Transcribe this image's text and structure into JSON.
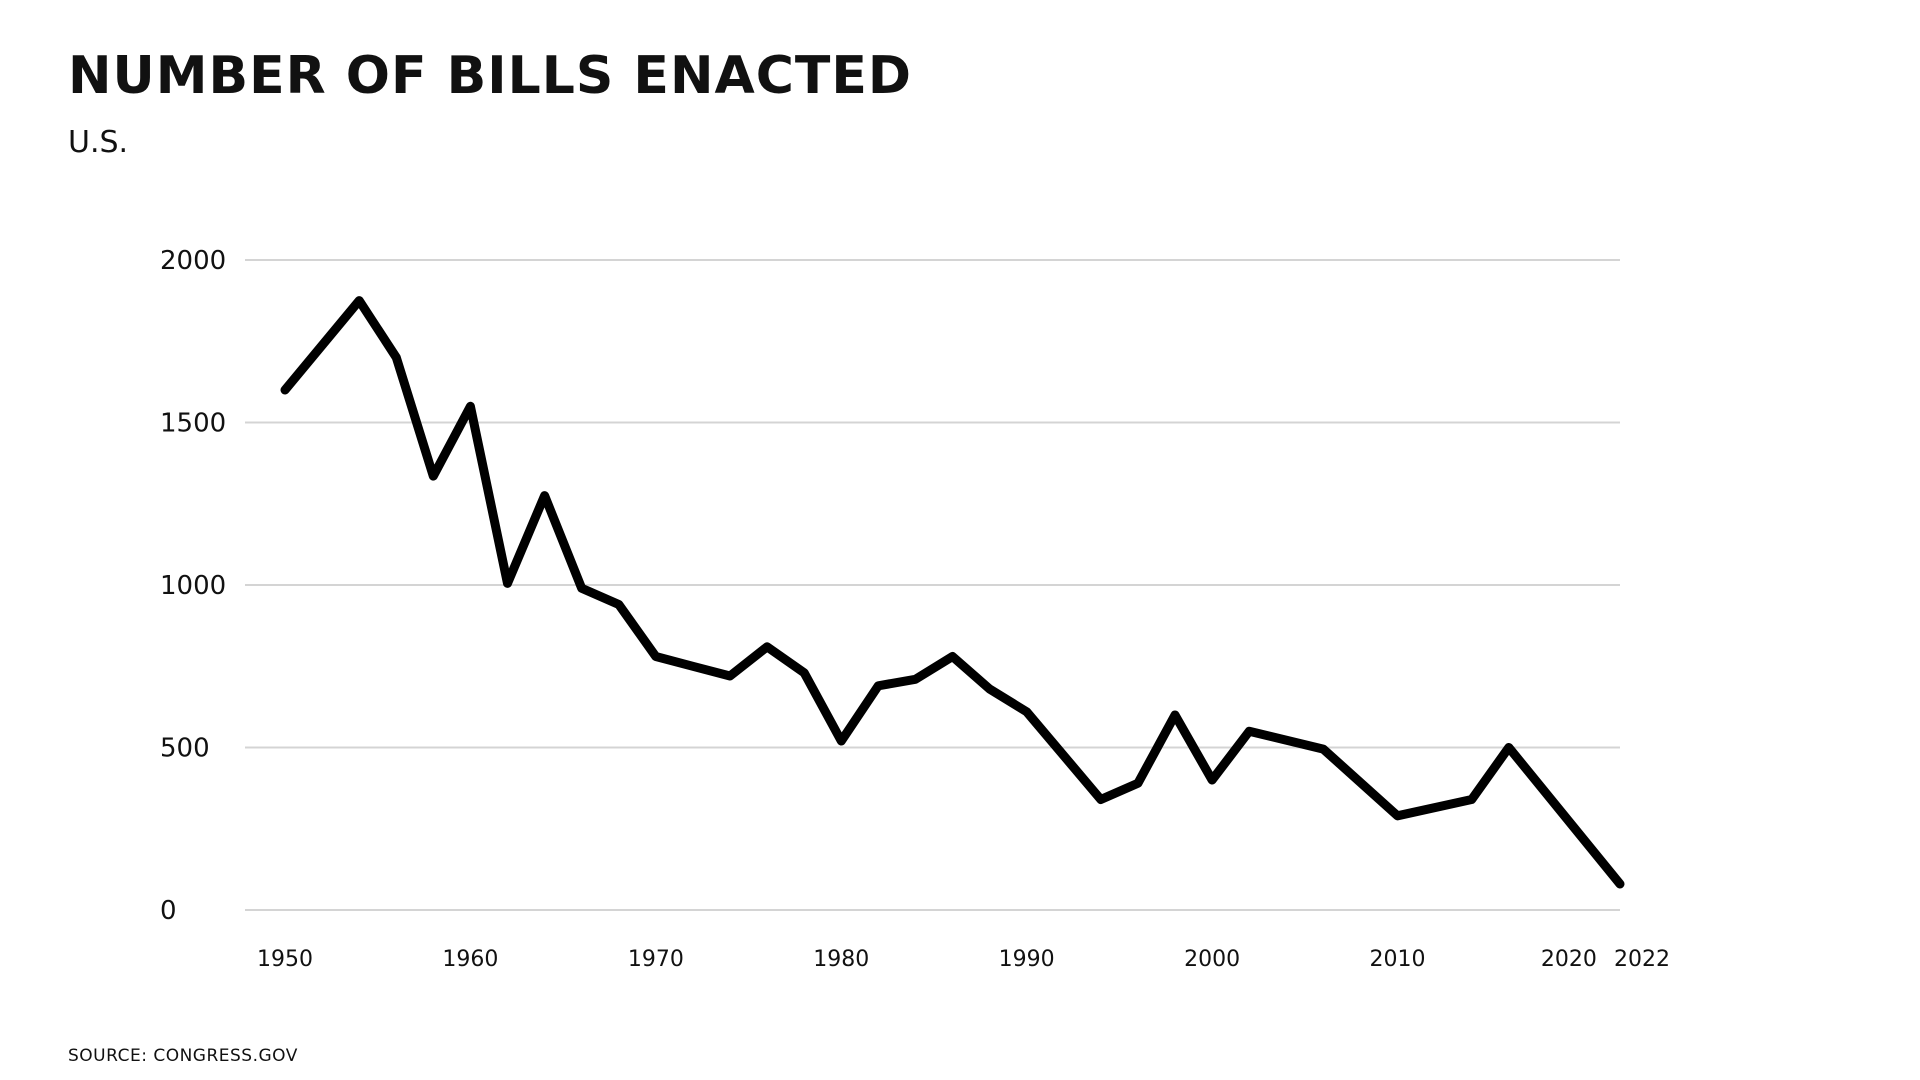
{
  "header": {
    "title": "Number of Bills Enacted",
    "subtitle": "U.S."
  },
  "footer": {
    "source": "Source: Congress.gov"
  },
  "colors": {
    "line": "#000000",
    "grid": "#d4d4d4",
    "text": "#111111",
    "background": "#ffffff"
  },
  "chart_data": {
    "type": "line",
    "title": "Number of Bills Enacted",
    "subtitle": "U.S.",
    "xlabel": "",
    "ylabel": "",
    "ylim": [
      0,
      2000
    ],
    "xlim": [
      1950,
      2022
    ],
    "grid": true,
    "legend": "none",
    "y_ticks": [
      0,
      500,
      1000,
      1500,
      2000
    ],
    "x_ticks": [
      1950,
      1960,
      1970,
      1980,
      1990,
      2000,
      2010,
      2020,
      2022
    ],
    "series": [
      {
        "x": [
          1950,
          1954,
          1956,
          1958,
          1960,
          1962,
          1964,
          1966,
          1968,
          1970,
          1972,
          1974,
          1976,
          1978,
          1980,
          1982,
          1984,
          1986,
          1988,
          1990,
          1994,
          1996,
          1998,
          2000,
          2002,
          2006,
          2010,
          2014,
          2016,
          2022
        ],
        "y": [
          1600,
          1875,
          1700,
          1335,
          1550,
          1005,
          1275,
          990,
          940,
          780,
          750,
          720,
          810,
          730,
          520,
          690,
          710,
          780,
          680,
          610,
          340,
          390,
          600,
          400,
          550,
          495,
          290,
          340,
          500,
          80
        ]
      }
    ]
  }
}
